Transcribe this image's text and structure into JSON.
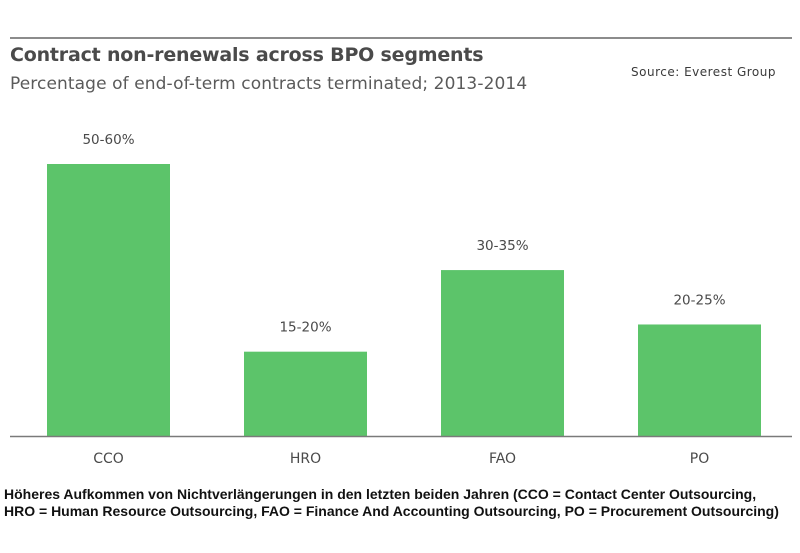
{
  "header": {
    "title": "Contract non-renewals across BPO segments",
    "subtitle": "Percentage of end-of-term contracts terminated; 2013-2014",
    "source": "Source: Everest Group"
  },
  "caption": "Höheres Aufkommen von Nichtverlängerungen in den letzten beiden Jahren (CCO = Contact Center Outsourcing, HRO = Human Resource Outsourcing, FAO = Finance And Accounting Outsourcing, PO = Procurement Outsourcing)",
  "colors": {
    "bar": "#5cc46a",
    "axis": "#7a7a7a",
    "text": "#4a4a4a"
  },
  "chart_data": {
    "type": "bar",
    "title": "Contract non-renewals across BPO segments",
    "subtitle": "Percentage of end-of-term contracts terminated; 2013-2014",
    "categories": [
      "CCO",
      "HRO",
      "FAO",
      "PO"
    ],
    "values": [
      50,
      15.5,
      30.5,
      20.5
    ],
    "data_labels": [
      "50-60%",
      "15-20%",
      "30-35%",
      "20-25%"
    ],
    "xlabel": "",
    "ylabel": "",
    "ylim": [
      0,
      60
    ],
    "grid": false,
    "legend": "none"
  }
}
